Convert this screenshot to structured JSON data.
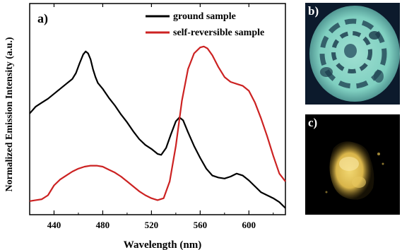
{
  "chart_data": {
    "type": "line",
    "panel_label": "a)",
    "xlabel": "Wavelength (nm)",
    "ylabel": "Normalized Emission Intensity (a.u.)",
    "xlim": [
      420,
      630
    ],
    "ylim": [
      0,
      1
    ],
    "x_ticks": [
      "440",
      "480",
      "520",
      "560",
      "600"
    ],
    "x_tick_values": [
      440,
      480,
      520,
      560,
      600
    ],
    "show_y_ticks": false,
    "grid": false,
    "legend_position": "top-right",
    "series": [
      {
        "name": "ground sample",
        "color": "#000000",
        "x": [
          420,
          425,
          430,
          435,
          440,
          445,
          450,
          455,
          458,
          461,
          464,
          466,
          468,
          470,
          472,
          474,
          476,
          480,
          485,
          490,
          495,
          500,
          505,
          510,
          515,
          520,
          525,
          528,
          532,
          536,
          540,
          543,
          546,
          550,
          555,
          560,
          565,
          570,
          575,
          580,
          585,
          590,
          595,
          600,
          605,
          610,
          615,
          620,
          625,
          630
        ],
        "y": [
          0.485,
          0.52,
          0.54,
          0.56,
          0.585,
          0.61,
          0.635,
          0.66,
          0.69,
          0.74,
          0.785,
          0.8,
          0.79,
          0.76,
          0.71,
          0.67,
          0.64,
          0.61,
          0.565,
          0.525,
          0.48,
          0.44,
          0.395,
          0.355,
          0.325,
          0.305,
          0.28,
          0.275,
          0.31,
          0.38,
          0.445,
          0.465,
          0.45,
          0.39,
          0.32,
          0.26,
          0.205,
          0.17,
          0.16,
          0.155,
          0.165,
          0.18,
          0.17,
          0.145,
          0.115,
          0.085,
          0.07,
          0.055,
          0.035,
          0.005
        ]
      },
      {
        "name": "self-reversible sample",
        "color": "#cc2222",
        "x": [
          420,
          425,
          430,
          435,
          440,
          445,
          450,
          455,
          460,
          465,
          470,
          475,
          480,
          485,
          490,
          495,
          500,
          505,
          510,
          515,
          520,
          525,
          530,
          535,
          540,
          545,
          550,
          555,
          560,
          563,
          566,
          570,
          575,
          580,
          585,
          590,
          595,
          600,
          605,
          610,
          615,
          620,
          625,
          630
        ],
        "y": [
          0.04,
          0.045,
          0.05,
          0.07,
          0.12,
          0.15,
          0.17,
          0.19,
          0.205,
          0.215,
          0.22,
          0.22,
          0.215,
          0.2,
          0.185,
          0.165,
          0.14,
          0.115,
          0.09,
          0.07,
          0.055,
          0.045,
          0.055,
          0.14,
          0.32,
          0.55,
          0.71,
          0.79,
          0.82,
          0.825,
          0.815,
          0.78,
          0.72,
          0.67,
          0.645,
          0.635,
          0.625,
          0.6,
          0.54,
          0.46,
          0.37,
          0.27,
          0.18,
          0.14
        ]
      }
    ]
  },
  "photos": [
    {
      "label": "b)",
      "description_icon": "photo-disc-icon"
    },
    {
      "label": "c)",
      "description_icon": "photo-powder-icon"
    }
  ]
}
